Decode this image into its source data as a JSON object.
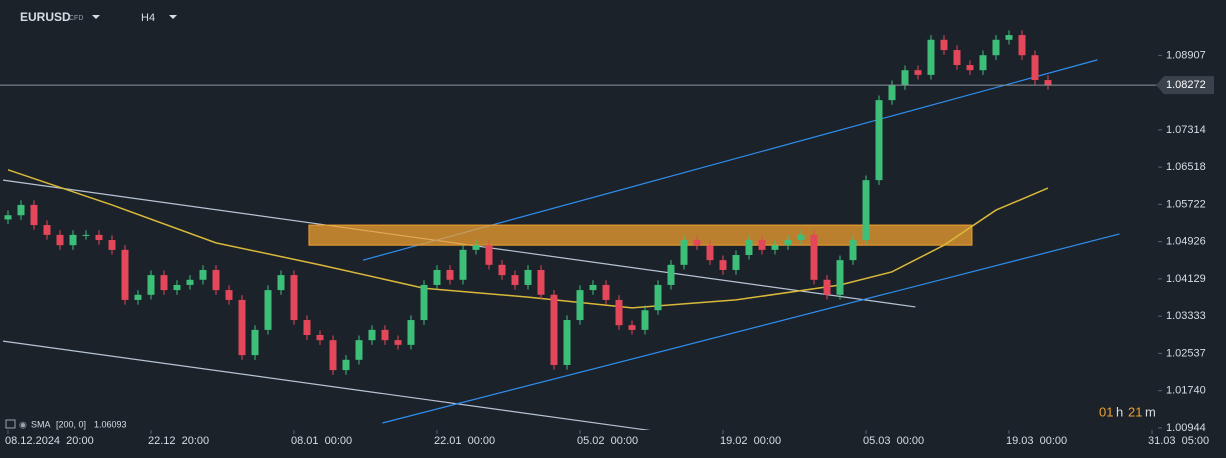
{
  "header": {
    "symbol": "EURUSD",
    "market": "CFD",
    "timeframe": "H4"
  },
  "chart_data": {
    "type": "candlestick",
    "xlim": [
      0,
      88
    ],
    "ylim": [
      1.009,
      1.1009
    ],
    "xticks": [
      {
        "value": 0,
        "label": "08.12.2024  20:00"
      },
      {
        "value": 11,
        "label": "22.12  20:00"
      },
      {
        "value": 22,
        "label": "08.01  00:00"
      },
      {
        "value": 33,
        "label": "22.01  00:00"
      },
      {
        "value": 44,
        "label": "05.02  00:00"
      },
      {
        "value": 55,
        "label": "19.02  00:00"
      },
      {
        "value": 66,
        "label": "05.03  00:00"
      },
      {
        "value": 77,
        "label": "19.03  00:00"
      },
      {
        "value": 88,
        "label": "31.03  05:00"
      }
    ],
    "yticks": [
      1.08907,
      1.07314,
      1.06518,
      1.05722,
      1.04926,
      1.04129,
      1.03333,
      1.02537,
      {
        "value": 1.0174,
        "label": "1.01740"
      },
      1.00944
    ],
    "up_color": "#3dbf7a",
    "down_color": "#e5475a",
    "x": [
      0,
      1,
      2,
      3,
      4,
      5,
      6,
      7,
      8,
      9,
      10,
      11,
      12,
      13,
      14,
      15,
      16,
      17,
      18,
      19,
      20,
      21,
      22,
      23,
      24,
      25,
      26,
      27,
      28,
      29,
      30,
      31,
      32,
      33,
      34,
      35,
      36,
      37,
      38,
      39,
      40,
      41,
      42,
      43,
      44,
      45,
      46,
      47,
      48,
      49,
      50,
      51,
      52,
      53,
      54,
      55,
      56,
      57,
      58,
      59,
      60,
      61,
      62,
      63,
      64,
      65,
      66,
      67,
      68,
      69,
      70,
      71,
      72,
      73,
      74,
      75,
      76,
      77,
      78,
      79,
      80
    ],
    "open": [
      1.054,
      1.0549,
      1.0571,
      1.0528,
      1.0507,
      1.0485,
      1.0507,
      1.0507,
      1.0496,
      1.0475,
      1.0368,
      1.0379,
      1.0421,
      1.0389,
      1.04,
      1.0411,
      1.0432,
      1.0389,
      1.0368,
      1.025,
      1.0304,
      1.0389,
      1.0421,
      1.0325,
      1.0293,
      1.0282,
      1.0218,
      1.024,
      1.0282,
      1.0304,
      1.0282,
      1.0272,
      1.0325,
      1.04,
      1.0432,
      1.0411,
      1.0475,
      1.0485,
      1.0443,
      1.0421,
      1.04,
      1.0432,
      1.0379,
      1.0229,
      1.0325,
      1.0389,
      1.04,
      1.0368,
      1.0314,
      1.0304,
      1.0346,
      1.04,
      1.0443,
      1.0496,
      1.0485,
      1.0453,
      1.0432,
      1.0464,
      1.0496,
      1.0475,
      1.0485,
      1.0496,
      1.0507,
      1.0411,
      1.0379,
      1.0453,
      1.0496,
      1.0624,
      1.0795,
      1.0827,
      1.0859,
      1.0849,
      1.0924,
      1.0902,
      1.087,
      1.0859,
      1.0891,
      1.0924,
      1.0934,
      1.0891,
      1.0838
    ],
    "high": [
      1.0559,
      1.0581,
      1.0581,
      1.0538,
      1.0517,
      1.0517,
      1.0517,
      1.0517,
      1.0506,
      1.0485,
      1.0389,
      1.0431,
      1.0431,
      1.041,
      1.0421,
      1.0442,
      1.0442,
      1.0399,
      1.0378,
      1.0314,
      1.0399,
      1.0431,
      1.0431,
      1.0335,
      1.0303,
      1.0292,
      1.025,
      1.0292,
      1.0314,
      1.0314,
      1.0292,
      1.0335,
      1.041,
      1.0442,
      1.0442,
      1.0485,
      1.0495,
      1.0495,
      1.0453,
      1.0431,
      1.0442,
      1.0442,
      1.0389,
      1.0335,
      1.0399,
      1.041,
      1.041,
      1.0378,
      1.0324,
      1.0356,
      1.041,
      1.0453,
      1.0506,
      1.0506,
      1.0495,
      1.0463,
      1.0474,
      1.0506,
      1.0506,
      1.0495,
      1.0506,
      1.0517,
      1.0517,
      1.0421,
      1.0463,
      1.0506,
      1.0634,
      1.0805,
      1.0837,
      1.0869,
      1.0869,
      1.0934,
      1.0934,
      1.0912,
      1.088,
      1.0901,
      1.0934,
      1.0944,
      1.0944,
      1.0901,
      1.0848
    ],
    "low": [
      1.053,
      1.0539,
      1.0518,
      1.0497,
      1.0475,
      1.0475,
      1.0497,
      1.0486,
      1.0465,
      1.0358,
      1.0358,
      1.0369,
      1.0379,
      1.0379,
      1.039,
      1.0401,
      1.0379,
      1.0358,
      1.024,
      1.024,
      1.0294,
      1.0379,
      1.0315,
      1.0283,
      1.0272,
      1.0208,
      1.0208,
      1.023,
      1.0272,
      1.0272,
      1.0262,
      1.0262,
      1.0315,
      1.039,
      1.0401,
      1.0401,
      1.0465,
      1.0433,
      1.0411,
      1.039,
      1.039,
      1.0369,
      1.0219,
      1.0219,
      1.0315,
      1.0379,
      1.0358,
      1.0304,
      1.0294,
      1.0294,
      1.0336,
      1.039,
      1.0433,
      1.0475,
      1.0443,
      1.0422,
      1.0422,
      1.0454,
      1.0465,
      1.0465,
      1.0475,
      1.0486,
      1.0401,
      1.0369,
      1.0369,
      1.0443,
      1.0486,
      1.0614,
      1.0785,
      1.0817,
      1.0839,
      1.0839,
      1.0892,
      1.086,
      1.0849,
      1.0849,
      1.0881,
      1.0914,
      1.0881,
      1.0828,
      1.0817
    ],
    "close": [
      1.0549,
      1.0571,
      1.0528,
      1.0507,
      1.0485,
      1.0507,
      1.0507,
      1.0496,
      1.0475,
      1.0368,
      1.0379,
      1.0421,
      1.0389,
      1.04,
      1.0411,
      1.0432,
      1.0389,
      1.0368,
      1.025,
      1.0304,
      1.0389,
      1.0421,
      1.0325,
      1.0293,
      1.0282,
      1.0218,
      1.024,
      1.0282,
      1.0304,
      1.0282,
      1.0272,
      1.0325,
      1.04,
      1.0432,
      1.0411,
      1.0475,
      1.0485,
      1.0443,
      1.0421,
      1.04,
      1.0432,
      1.0379,
      1.0229,
      1.0325,
      1.0389,
      1.04,
      1.0368,
      1.0314,
      1.0304,
      1.0346,
      1.04,
      1.0443,
      1.0496,
      1.0485,
      1.0453,
      1.0432,
      1.0464,
      1.0496,
      1.0475,
      1.0485,
      1.0496,
      1.0507,
      1.0411,
      1.0379,
      1.0453,
      1.0496,
      1.0624,
      1.0795,
      1.0827,
      1.0859,
      1.0849,
      1.0924,
      1.0902,
      1.087,
      1.0859,
      1.0891,
      1.0924,
      1.0934,
      1.0891,
      1.0838,
      1.0827
    ],
    "indicator": {
      "icon": "SMA",
      "params": "[200, 0]",
      "value": "1.06093",
      "color": "#d9b83a",
      "x": [
        0,
        8,
        16,
        24,
        32,
        40,
        48,
        56,
        64,
        68,
        72,
        76,
        80
      ],
      "values": [
        1.0646,
        1.0571,
        1.049,
        1.0443,
        1.0393,
        1.0374,
        1.0351,
        1.0368,
        1.04,
        1.0428,
        1.0485,
        1.056,
        1.0607
      ]
    },
    "shapes": [
      {
        "type": "line",
        "color": "#b8c4d6",
        "x": [
          -0.38,
          69.8
        ],
        "y": [
          1.0624,
          1.0353
        ]
      },
      {
        "type": "line",
        "color": "#b8c4d6",
        "x": [
          -0.38,
          50.15
        ],
        "y": [
          1.028,
          1.0086
        ]
      },
      {
        "type": "line",
        "color": "#2f8ff0",
        "x": [
          27.3,
          83.8
        ],
        "y": [
          1.0453,
          1.0881
        ]
      },
      {
        "type": "line",
        "color": "#2f8ff0",
        "x": [
          28.8,
          85.5
        ],
        "y": [
          1.0105,
          1.0509
        ]
      },
      {
        "type": "rect",
        "color": "#f0a030",
        "x": [
          23.15,
          74.15
        ],
        "y": [
          1.0528,
          1.0485
        ]
      }
    ],
    "last_price": 1.08272,
    "countdown": {
      "hours": "01",
      "h": "h",
      "minutes": "21",
      "m": "m"
    }
  }
}
